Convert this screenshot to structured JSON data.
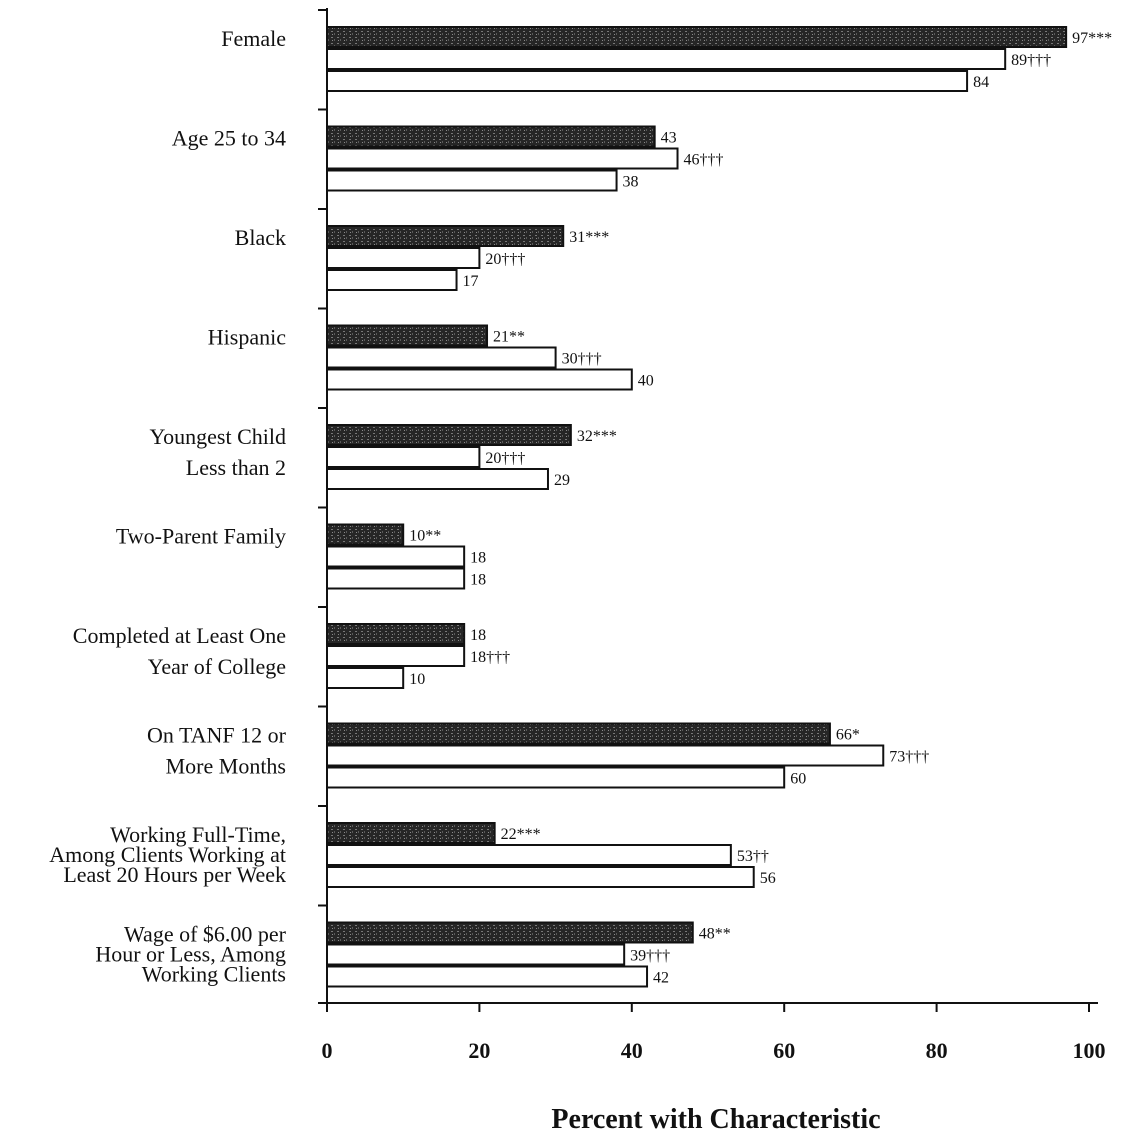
{
  "chart_data": {
    "type": "bar",
    "orientation": "horizontal",
    "title": "",
    "xlabel": "Percent with Characteristic",
    "ylabel": "",
    "xlim": [
      0,
      100
    ],
    "ticks": [
      0,
      20,
      40,
      60,
      80,
      100
    ],
    "grid": false,
    "legend": "none",
    "colors": {
      "series1": "#2b2b2b",
      "series2": "#ffffff",
      "series3": "#ffffff",
      "stroke": "#111111"
    },
    "categories": [
      [
        "Female"
      ],
      [
        "Age 25 to 34"
      ],
      [
        "Black"
      ],
      [
        "Hispanic"
      ],
      [
        "Youngest Child",
        "Less than 2"
      ],
      [
        "Two-Parent Family"
      ],
      [
        "Completed at Least One",
        "Year of College"
      ],
      [
        "On TANF 12 or",
        "More Months"
      ],
      [
        "Working Full-Time,",
        "Among Clients Working at",
        "Least 20 Hours per Week"
      ],
      [
        "Wage of $6.00 per",
        "Hour or Less, Among",
        "Working Clients"
      ]
    ],
    "series": [
      {
        "values": [
          97,
          43,
          31,
          21,
          32,
          10,
          18,
          66,
          22,
          48
        ],
        "labels": [
          "97***",
          "43",
          "31***",
          "21**",
          "32***",
          "10**",
          "18",
          "66*",
          "22***",
          "48**"
        ]
      },
      {
        "values": [
          89,
          46,
          20,
          30,
          20,
          18,
          18,
          73,
          53,
          39
        ],
        "labels": [
          "89†††",
          "46†††",
          "20†††",
          "30†††",
          "20†††",
          "18",
          "18†††",
          "73†††",
          "53††",
          "39†††"
        ]
      },
      {
        "values": [
          84,
          38,
          17,
          40,
          29,
          18,
          10,
          60,
          56,
          42
        ],
        "labels": [
          "84",
          "38",
          "17",
          "40",
          "29",
          "18",
          "10",
          "60",
          "56",
          "42"
        ]
      }
    ]
  }
}
